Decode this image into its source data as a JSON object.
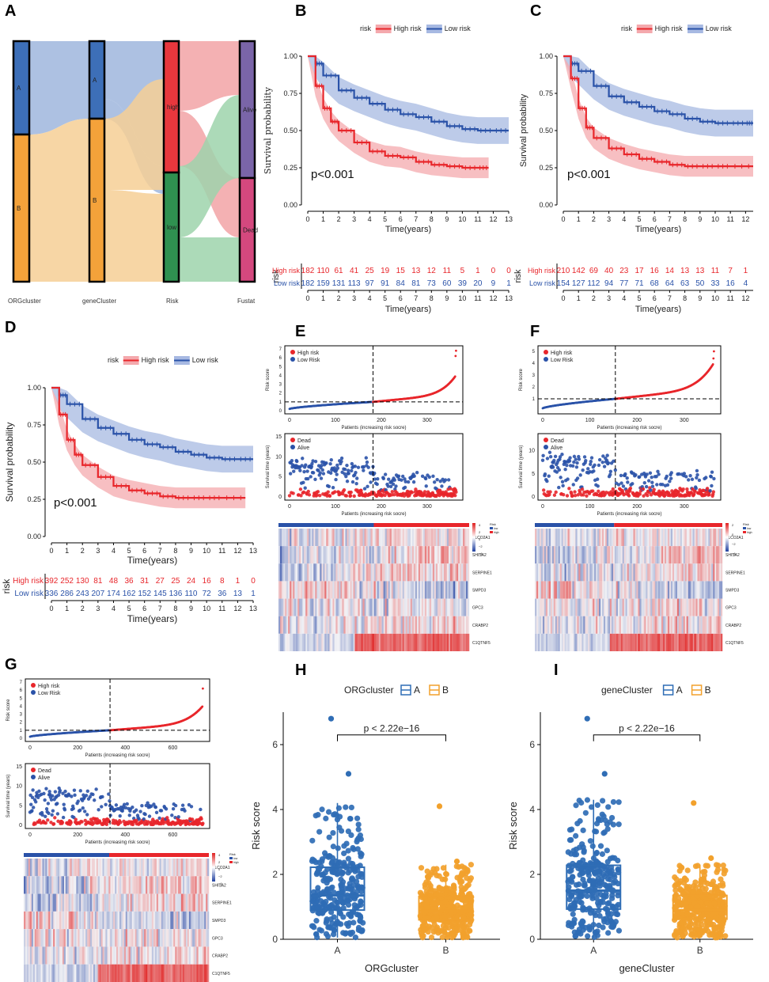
{
  "panels": {
    "A": "A",
    "B": "B",
    "C": "C",
    "D": "D",
    "E": "E",
    "F": "F",
    "G": "G",
    "H": "H",
    "I": "I"
  },
  "colors": {
    "high": "#e8262b",
    "low": "#2a52a8",
    "highBand": "#f4a9ad",
    "lowBand": "#a7b9e2",
    "orgA": "#2f6db5",
    "orgB": "#f2a12c",
    "riskGreen": "#2e9150",
    "heatRed": "#e02020",
    "heatBlue": "#2040a0"
  },
  "chart_data": [
    {
      "id": "A",
      "type": "sankey",
      "axes": [
        "ORGcluster",
        "geneCluster",
        "Risk",
        "Fustat"
      ],
      "nodes": {
        "ORGcluster": [
          "A",
          "B"
        ],
        "geneCluster": [
          "A",
          "B"
        ],
        "Risk": [
          "high",
          "low"
        ],
        "Fustat": [
          "Alive",
          "Dead"
        ]
      }
    },
    {
      "id": "B",
      "type": "line",
      "subtype": "kaplan-meier",
      "legend_title": "risk",
      "legend": [
        "High risk",
        "Low risk"
      ],
      "xlabel": "Time(years)",
      "ylabel": "Survival probability",
      "xlim": [
        0,
        13
      ],
      "ylim": [
        0,
        1
      ],
      "xticks": [
        "0",
        "1",
        "2",
        "3",
        "4",
        "5",
        "6",
        "7",
        "8",
        "9",
        "10",
        "11",
        "12",
        "13"
      ],
      "yticks": [
        "0.00",
        "0.25",
        "0.50",
        "0.75",
        "1.00"
      ],
      "pvalue": "p<0.001",
      "high": {
        "x": [
          0,
          0.5,
          1,
          1.5,
          2,
          3,
          4,
          5,
          6,
          7,
          8,
          9,
          10,
          11,
          11.7
        ],
        "y": [
          1,
          0.8,
          0.65,
          0.56,
          0.5,
          0.42,
          0.36,
          0.33,
          0.32,
          0.29,
          0.27,
          0.26,
          0.25,
          0.25,
          0.25
        ]
      },
      "low": {
        "x": [
          0,
          0.5,
          1,
          2,
          3,
          4,
          5,
          6,
          7,
          8,
          9,
          10,
          11,
          12,
          13
        ],
        "y": [
          1,
          0.95,
          0.87,
          0.77,
          0.72,
          0.68,
          0.64,
          0.61,
          0.59,
          0.56,
          0.53,
          0.51,
          0.5,
          0.5,
          0.5
        ]
      },
      "risk_table_label": "risk",
      "risk_rows": [
        "High risk",
        "Low risk"
      ],
      "risk_high": [
        "182",
        "110",
        "61",
        "41",
        "25",
        "19",
        "15",
        "13",
        "12",
        "11",
        "5",
        "1",
        "0",
        "0"
      ],
      "risk_low": [
        "182",
        "159",
        "131",
        "113",
        "97",
        "91",
        "84",
        "81",
        "73",
        "60",
        "39",
        "20",
        "9",
        "1"
      ]
    },
    {
      "id": "C",
      "type": "line",
      "subtype": "kaplan-meier",
      "legend_title": "risk",
      "legend": [
        "High risk",
        "Low risk"
      ],
      "xlabel": "Time(years)",
      "ylabel": "Survival probability",
      "xlim": [
        0,
        12.5
      ],
      "ylim": [
        0,
        1
      ],
      "xticks": [
        "0",
        "1",
        "2",
        "3",
        "4",
        "5",
        "6",
        "7",
        "8",
        "9",
        "10",
        "11",
        "12"
      ],
      "yticks": [
        "0.00",
        "0.25",
        "0.50",
        "0.75",
        "1.00"
      ],
      "pvalue": "p<0.001",
      "high": {
        "x": [
          0,
          0.5,
          1,
          1.5,
          2,
          3,
          4,
          5,
          6,
          7,
          8,
          9,
          10,
          11,
          12.5
        ],
        "y": [
          1,
          0.85,
          0.65,
          0.52,
          0.45,
          0.38,
          0.34,
          0.31,
          0.29,
          0.27,
          0.26,
          0.26,
          0.26,
          0.26,
          0.26
        ]
      },
      "low": {
        "x": [
          0,
          0.5,
          1,
          2,
          3,
          4,
          5,
          6,
          7,
          8,
          9,
          10,
          11,
          12,
          12.5
        ],
        "y": [
          1,
          0.95,
          0.9,
          0.8,
          0.73,
          0.69,
          0.66,
          0.63,
          0.61,
          0.58,
          0.56,
          0.55,
          0.55,
          0.55,
          0.55
        ]
      },
      "risk_table_label": "risk",
      "risk_rows": [
        "High risk",
        "Low risk"
      ],
      "risk_high": [
        "210",
        "142",
        "69",
        "40",
        "23",
        "17",
        "16",
        "14",
        "13",
        "13",
        "11",
        "7",
        "1"
      ],
      "risk_low": [
        "154",
        "127",
        "112",
        "94",
        "77",
        "71",
        "68",
        "64",
        "63",
        "50",
        "33",
        "16",
        "4"
      ]
    },
    {
      "id": "D",
      "type": "line",
      "subtype": "kaplan-meier",
      "legend_title": "risk",
      "legend": [
        "High risk",
        "Low risk"
      ],
      "xlabel": "Time(years)",
      "ylabel": "Survival probability",
      "xlim": [
        0,
        13
      ],
      "ylim": [
        0,
        1
      ],
      "xticks": [
        "0",
        "1",
        "2",
        "3",
        "4",
        "5",
        "6",
        "7",
        "8",
        "9",
        "10",
        "11",
        "12",
        "13"
      ],
      "yticks": [
        "0.00",
        "0.25",
        "0.50",
        "0.75",
        "1.00"
      ],
      "pvalue": "p<0.001",
      "high": {
        "x": [
          0,
          0.5,
          1,
          1.5,
          2,
          3,
          4,
          5,
          6,
          7,
          8,
          9,
          10,
          11,
          12.5
        ],
        "y": [
          1,
          0.82,
          0.65,
          0.55,
          0.48,
          0.4,
          0.34,
          0.31,
          0.29,
          0.27,
          0.26,
          0.26,
          0.26,
          0.26,
          0.26
        ]
      },
      "low": {
        "x": [
          0,
          0.5,
          1,
          2,
          3,
          4,
          5,
          6,
          7,
          8,
          9,
          10,
          11,
          12,
          13
        ],
        "y": [
          1,
          0.95,
          0.89,
          0.79,
          0.73,
          0.69,
          0.65,
          0.62,
          0.6,
          0.57,
          0.55,
          0.53,
          0.52,
          0.52,
          0.52
        ]
      },
      "risk_table_label": "risk",
      "risk_rows": [
        "High risk",
        "Low risk"
      ],
      "risk_high": [
        "392",
        "252",
        "130",
        "81",
        "48",
        "36",
        "31",
        "27",
        "25",
        "24",
        "16",
        "8",
        "1",
        "0"
      ],
      "risk_low": [
        "336",
        "286",
        "243",
        "207",
        "174",
        "162",
        "152",
        "145",
        "136",
        "110",
        "72",
        "36",
        "13",
        "1"
      ]
    },
    {
      "id": "E",
      "type": "scatter",
      "subtype": "risk-curve",
      "n": 364,
      "cutoff": 182,
      "threshold": 1.0,
      "ylabel_curve": "Risk score",
      "xlabel_curve": "Patients (increasing risk socre)",
      "ylabel_status": "Survival time (years)",
      "xlabel_status": "Patients (increasing risk socre)",
      "legend_curve": [
        "High risk",
        "Low Risk"
      ],
      "legend_status": [
        "Dead",
        "Alive"
      ],
      "xticks": [
        "0",
        "100",
        "200",
        "300"
      ],
      "yticks_curve": [
        "0",
        "1",
        "2",
        "3",
        "4",
        "5",
        "6",
        "7"
      ],
      "yticks_status": [
        "0",
        "5",
        "10",
        "15"
      ],
      "ymax_curve": 7,
      "ymax_status": 15,
      "max_score": 6.8,
      "heat_genes": [
        "SLCO2A1",
        "SHISA2",
        "SERPINE1",
        "SMPD3",
        "GPC3",
        "CRABP2",
        "C1QTNF5"
      ],
      "heat_legend_title": "Risk",
      "heat_legend_items": [
        "low",
        "high"
      ],
      "heat_scale": [
        "4",
        "2",
        "0",
        "−2",
        "−4"
      ]
    },
    {
      "id": "F",
      "type": "scatter",
      "subtype": "risk-curve",
      "n": 364,
      "cutoff": 154,
      "threshold": 1.0,
      "ylabel_curve": "Risk score",
      "xlabel_curve": "Patients (increasing risk socre)",
      "ylabel_status": "Survival time (years)",
      "xlabel_status": "Patients (increasing risk socre)",
      "legend_curve": [
        "High risk",
        "Low Risk"
      ],
      "legend_status": [
        "Dead",
        "Alive"
      ],
      "xticks": [
        "0",
        "100",
        "200",
        "300"
      ],
      "yticks_curve": [
        "1",
        "2",
        "3",
        "4",
        "5"
      ],
      "yticks_status": [
        "0",
        "5",
        "10"
      ],
      "ymax_curve": 5.2,
      "ymax_status": 13,
      "max_score": 5.0,
      "heat_genes": [
        "SLCO2A1",
        "SHISA2",
        "SERPINE1",
        "SMPD3",
        "GPC3",
        "CRABP2",
        "C1QTNF5"
      ],
      "heat_legend_title": "Risk",
      "heat_legend_items": [
        "low",
        "high"
      ],
      "heat_scale": [
        "2",
        "0",
        "−2",
        "−4"
      ]
    },
    {
      "id": "G",
      "type": "scatter",
      "subtype": "risk-curve",
      "n": 728,
      "cutoff": 336,
      "threshold": 1.0,
      "ylabel_curve": "Risk score",
      "xlabel_curve": "Patients (increasing risk socre)",
      "ylabel_status": "Survival time (years)",
      "xlabel_status": "Patients (increasing risk socre)",
      "legend_curve": [
        "High risk",
        "Low Risk"
      ],
      "legend_status": [
        "Dead",
        "Alive"
      ],
      "xticks": [
        "0",
        "200",
        "400",
        "600"
      ],
      "yticks_curve": [
        "0",
        "1",
        "2",
        "3",
        "4",
        "5",
        "6",
        "7"
      ],
      "yticks_status": [
        "0",
        "5",
        "10",
        "15"
      ],
      "ymax_curve": 7,
      "ymax_status": 15,
      "max_score": 6.8,
      "heat_genes": [
        "SLCO2A1",
        "SHISA2",
        "SERPINE1",
        "SMPD3",
        "GPC3",
        "CRABP2",
        "C1QTNF5"
      ],
      "heat_legend_title": "Risk",
      "heat_legend_items": [
        "low",
        "high"
      ],
      "heat_scale": [
        "4",
        "2",
        "0",
        "−2",
        "−4"
      ]
    },
    {
      "id": "H",
      "type": "box",
      "legend_title": "ORGcluster",
      "legend": [
        "A",
        "B"
      ],
      "categories": [
        "A",
        "B"
      ],
      "xlabel": "ORGcluster",
      "ylabel": "Risk score",
      "ylim": [
        0,
        7
      ],
      "yticks": [
        "0",
        "2",
        "4",
        "6"
      ],
      "pvalue": "p < 2.22e−16",
      "boxes": [
        {
          "q1": 0.9,
          "median": 1.35,
          "q3": 2.22,
          "lo": 0.05,
          "hi": 4.2,
          "max": 6.8
        },
        {
          "q1": 0.6,
          "median": 0.88,
          "q3": 1.32,
          "lo": 0.05,
          "hi": 2.3,
          "max": 4.1
        }
      ]
    },
    {
      "id": "I",
      "type": "box",
      "legend_title": "geneCluster",
      "legend": [
        "A",
        "B"
      ],
      "categories": [
        "A",
        "B"
      ],
      "xlabel": "geneCluster",
      "ylabel": "Risk score",
      "ylim": [
        0,
        7
      ],
      "yticks": [
        "0",
        "2",
        "4",
        "6"
      ],
      "pvalue": "p < 2.22e−16",
      "boxes": [
        {
          "q1": 0.93,
          "median": 1.5,
          "q3": 2.28,
          "lo": 0.05,
          "hi": 4.3,
          "max": 6.8
        },
        {
          "q1": 0.62,
          "median": 0.9,
          "q3": 1.35,
          "lo": 0.05,
          "hi": 2.3,
          "max": 4.2
        }
      ]
    }
  ]
}
